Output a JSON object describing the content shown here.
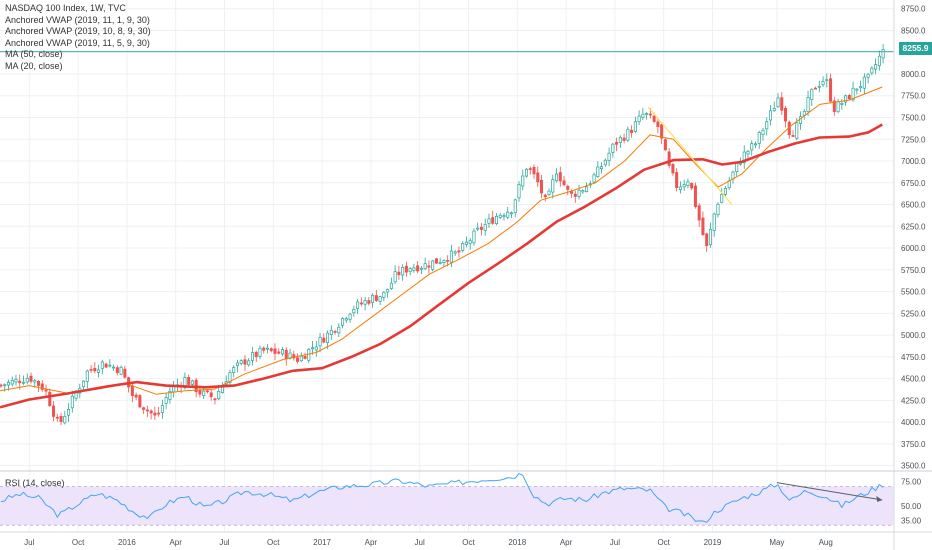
{
  "legend": {
    "title": "NASDAQ 100 Index, 1W, TVC",
    "vwap1": "Anchored VWAP (2019, 11, 1, 9, 30)",
    "vwap2": "Anchored VWAP (2019, 10, 8, 9, 30)",
    "vwap3": "Anchored VWAP (2019, 11, 5, 9, 30)",
    "ma50": "MA (50, close)",
    "ma20": "MA (20, close)"
  },
  "rsi_label": "RSI (14, close)",
  "last_price": "8255.9",
  "colors": {
    "up": "#26a69a",
    "down": "#ef5350",
    "ma50": "#e53935",
    "ma20": "#f57c00",
    "rsi": "#42a5f5",
    "rsi_band": "#ede3fb",
    "grid": "#eef1f4",
    "trend": "#ffe066"
  },
  "chart_data": {
    "type": "candlestick",
    "price_axis": {
      "min": 3450,
      "max": 8850,
      "ticks": [
        3500,
        3750,
        4000,
        4250,
        4500,
        4750,
        5000,
        5250,
        5500,
        5750,
        6000,
        6250,
        6500,
        6750,
        7000,
        7250,
        7500,
        7750,
        8000,
        8250,
        8500,
        8750
      ],
      "tick_labels": [
        "3500.0",
        "3750.0",
        "4000.0",
        "4250.0",
        "4500.0",
        "4750.0",
        "5000.0",
        "5250.0",
        "5500.0",
        "5750.0",
        "6000.0",
        "6250.0",
        "6500.0",
        "6750.0",
        "7000.0",
        "7250.0",
        "7500.0",
        "7750.0",
        "8000.0",
        "8250.0",
        "8500.0",
        "8750.0"
      ]
    },
    "time_axis": [
      {
        "label": "Jul",
        "t": 2015.5
      },
      {
        "label": "Oct",
        "t": 2015.75
      },
      {
        "label": "2016",
        "t": 2016.0
      },
      {
        "label": "Apr",
        "t": 2016.25
      },
      {
        "label": "Jul",
        "t": 2016.5
      },
      {
        "label": "Oct",
        "t": 2016.75
      },
      {
        "label": "2017",
        "t": 2017.0
      },
      {
        "label": "Apr",
        "t": 2017.25
      },
      {
        "label": "Jul",
        "t": 2017.5
      },
      {
        "label": "Oct",
        "t": 2017.75
      },
      {
        "label": "2018",
        "t": 2018.0
      },
      {
        "label": "Apr",
        "t": 2018.25
      },
      {
        "label": "Jul",
        "t": 2018.5
      },
      {
        "label": "Oct",
        "t": 2018.75
      },
      {
        "label": "2019",
        "t": 2019.0
      },
      {
        "label": "May",
        "t": 2019.33
      },
      {
        "label": "Aug",
        "t": 2019.58
      }
    ],
    "close_path": [
      [
        2015.35,
        4420
      ],
      [
        2015.5,
        4520
      ],
      [
        2015.58,
        4380
      ],
      [
        2015.65,
        3960
      ],
      [
        2015.72,
        4250
      ],
      [
        2015.8,
        4590
      ],
      [
        2015.88,
        4680
      ],
      [
        2015.97,
        4600
      ],
      [
        2016.03,
        4300
      ],
      [
        2016.1,
        4150
      ],
      [
        2016.15,
        4050
      ],
      [
        2016.22,
        4360
      ],
      [
        2016.3,
        4500
      ],
      [
        2016.38,
        4330
      ],
      [
        2016.45,
        4280
      ],
      [
        2016.52,
        4550
      ],
      [
        2016.6,
        4700
      ],
      [
        2016.7,
        4820
      ],
      [
        2016.8,
        4790
      ],
      [
        2016.88,
        4720
      ],
      [
        2016.97,
        4900
      ],
      [
        2017.05,
        5050
      ],
      [
        2017.15,
        5300
      ],
      [
        2017.25,
        5420
      ],
      [
        2017.32,
        5470
      ],
      [
        2017.38,
        5700
      ],
      [
        2017.45,
        5780
      ],
      [
        2017.52,
        5800
      ],
      [
        2017.6,
        5860
      ],
      [
        2017.7,
        5950
      ],
      [
        2017.8,
        6200
      ],
      [
        2017.9,
        6380
      ],
      [
        2017.97,
        6450
      ],
      [
        2018.05,
        6950
      ],
      [
        2018.1,
        6780
      ],
      [
        2018.15,
        6500
      ],
      [
        2018.2,
        6900
      ],
      [
        2018.27,
        6600
      ],
      [
        2018.35,
        6700
      ],
      [
        2018.42,
        6900
      ],
      [
        2018.5,
        7200
      ],
      [
        2018.58,
        7350
      ],
      [
        2018.65,
        7550
      ],
      [
        2018.72,
        7400
      ],
      [
        2018.78,
        6900
      ],
      [
        2018.82,
        6700
      ],
      [
        2018.88,
        6800
      ],
      [
        2018.94,
        6250
      ],
      [
        2018.97,
        6000
      ],
      [
        2019.02,
        6500
      ],
      [
        2019.08,
        6750
      ],
      [
        2019.15,
        7050
      ],
      [
        2019.22,
        7200
      ],
      [
        2019.3,
        7550
      ],
      [
        2019.34,
        7750
      ],
      [
        2019.4,
        7300
      ],
      [
        2019.45,
        7450
      ],
      [
        2019.52,
        7850
      ],
      [
        2019.58,
        7950
      ],
      [
        2019.62,
        7600
      ],
      [
        2019.68,
        7700
      ],
      [
        2019.74,
        7850
      ],
      [
        2019.8,
        7950
      ],
      [
        2019.87,
        8255.9
      ]
    ],
    "ma20_path": [
      [
        2015.35,
        4360
      ],
      [
        2015.5,
        4420
      ],
      [
        2015.7,
        4330
      ],
      [
        2015.85,
        4380
      ],
      [
        2016.0,
        4440
      ],
      [
        2016.15,
        4320
      ],
      [
        2016.3,
        4360
      ],
      [
        2016.45,
        4380
      ],
      [
        2016.6,
        4550
      ],
      [
        2016.8,
        4720
      ],
      [
        2016.97,
        4800
      ],
      [
        2017.1,
        4950
      ],
      [
        2017.25,
        5200
      ],
      [
        2017.4,
        5450
      ],
      [
        2017.55,
        5700
      ],
      [
        2017.7,
        5870
      ],
      [
        2017.85,
        6050
      ],
      [
        2018.0,
        6300
      ],
      [
        2018.12,
        6550
      ],
      [
        2018.27,
        6650
      ],
      [
        2018.4,
        6750
      ],
      [
        2018.55,
        7000
      ],
      [
        2018.68,
        7300
      ],
      [
        2018.8,
        7250
      ],
      [
        2018.92,
        6950
      ],
      [
        2019.03,
        6700
      ],
      [
        2019.15,
        6850
      ],
      [
        2019.28,
        7150
      ],
      [
        2019.4,
        7400
      ],
      [
        2019.55,
        7650
      ],
      [
        2019.7,
        7700
      ],
      [
        2019.87,
        7850
      ]
    ],
    "ma50_path": [
      [
        2015.35,
        4170
      ],
      [
        2015.5,
        4260
      ],
      [
        2015.7,
        4330
      ],
      [
        2015.9,
        4410
      ],
      [
        2016.05,
        4460
      ],
      [
        2016.2,
        4420
      ],
      [
        2016.4,
        4400
      ],
      [
        2016.55,
        4420
      ],
      [
        2016.7,
        4500
      ],
      [
        2016.85,
        4590
      ],
      [
        2017.0,
        4620
      ],
      [
        2017.15,
        4750
      ],
      [
        2017.3,
        4900
      ],
      [
        2017.45,
        5100
      ],
      [
        2017.6,
        5350
      ],
      [
        2017.75,
        5600
      ],
      [
        2017.9,
        5820
      ],
      [
        2018.05,
        6050
      ],
      [
        2018.2,
        6300
      ],
      [
        2018.35,
        6480
      ],
      [
        2018.5,
        6680
      ],
      [
        2018.65,
        6900
      ],
      [
        2018.8,
        7010
      ],
      [
        2018.95,
        7020
      ],
      [
        2019.05,
        6960
      ],
      [
        2019.15,
        6990
      ],
      [
        2019.28,
        7100
      ],
      [
        2019.42,
        7200
      ],
      [
        2019.55,
        7270
      ],
      [
        2019.7,
        7280
      ],
      [
        2019.8,
        7330
      ],
      [
        2019.87,
        7420
      ]
    ],
    "trend_line": [
      [
        2018.67,
        7620
      ],
      [
        2019.1,
        6500
      ]
    ],
    "rsi": {
      "axis": {
        "min": 25,
        "max": 85,
        "ticks": [
          35,
          50,
          75
        ],
        "tick_labels": [
          "35.00",
          "50.00",
          "75.00"
        ]
      },
      "band": [
        30,
        70
      ],
      "values": [
        [
          2015.35,
          55
        ],
        [
          2015.45,
          62
        ],
        [
          2015.55,
          58
        ],
        [
          2015.65,
          40
        ],
        [
          2015.75,
          52
        ],
        [
          2015.85,
          63
        ],
        [
          2015.95,
          56
        ],
        [
          2016.05,
          42
        ],
        [
          2016.12,
          38
        ],
        [
          2016.2,
          52
        ],
        [
          2016.3,
          60
        ],
        [
          2016.4,
          48
        ],
        [
          2016.5,
          55
        ],
        [
          2016.6,
          65
        ],
        [
          2016.72,
          62
        ],
        [
          2016.85,
          55
        ],
        [
          2016.97,
          64
        ],
        [
          2017.1,
          70
        ],
        [
          2017.25,
          72
        ],
        [
          2017.4,
          76
        ],
        [
          2017.55,
          70
        ],
        [
          2017.7,
          74
        ],
        [
          2017.85,
          78
        ],
        [
          2017.97,
          80
        ],
        [
          2018.03,
          84
        ],
        [
          2018.08,
          62
        ],
        [
          2018.15,
          52
        ],
        [
          2018.25,
          58
        ],
        [
          2018.35,
          56
        ],
        [
          2018.45,
          64
        ],
        [
          2018.55,
          68
        ],
        [
          2018.68,
          66
        ],
        [
          2018.76,
          48
        ],
        [
          2018.85,
          42
        ],
        [
          2018.95,
          32
        ],
        [
          2019.02,
          45
        ],
        [
          2019.15,
          58
        ],
        [
          2019.25,
          65
        ],
        [
          2019.33,
          73
        ],
        [
          2019.4,
          55
        ],
        [
          2019.48,
          66
        ],
        [
          2019.58,
          60
        ],
        [
          2019.66,
          50
        ],
        [
          2019.75,
          60
        ],
        [
          2019.87,
          72
        ]
      ],
      "trend_line": [
        [
          2019.33,
          74
        ],
        [
          2019.87,
          56
        ]
      ]
    }
  }
}
